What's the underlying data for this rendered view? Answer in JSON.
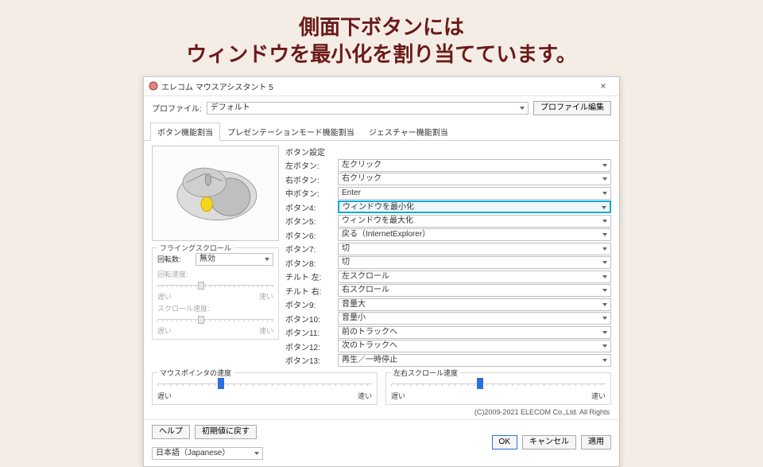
{
  "headline_line1": "側面下ボタンには",
  "headline_line2": "ウィンドウを最小化を割り当てています。",
  "window": {
    "title": "エレコム マウスアシスタント 5",
    "profile_label": "プロファイル:",
    "profile_value": "デフォルト",
    "profile_edit_btn": "プロファイル編集",
    "tabs": {
      "t1": "ボタン機能割当",
      "t2": "プレゼンテーションモード機能割当",
      "t3": "ジェスチャー機能割当"
    },
    "button_settings_label": "ボタン設定",
    "rows": [
      {
        "label": "左ボタン:",
        "value": "左クリック"
      },
      {
        "label": "右ボタン:",
        "value": "右クリック"
      },
      {
        "label": "中ボタン:",
        "value": "Enter"
      },
      {
        "label": "ボタン4:",
        "value": "ウィンドウを最小化",
        "highlight": true
      },
      {
        "label": "ボタン5:",
        "value": "ウィンドウを最大化"
      },
      {
        "label": "ボタン6:",
        "value": "戻る（InternetExplorer）"
      },
      {
        "label": "ボタン7:",
        "value": "切"
      },
      {
        "label": "ボタン8:",
        "value": "切"
      },
      {
        "label": "チルト 左:",
        "value": "左スクロール"
      },
      {
        "label": "チルト 右:",
        "value": "右スクロール"
      },
      {
        "label": "ボタン9:",
        "value": "音量大"
      },
      {
        "label": "ボタン10:",
        "value": "音量小"
      },
      {
        "label": "ボタン11:",
        "value": "前のトラックへ"
      },
      {
        "label": "ボタン12:",
        "value": "次のトラックへ"
      },
      {
        "label": "ボタン13:",
        "value": "再生／一時停止"
      }
    ],
    "flying_scroll": {
      "title": "フライングスクロール",
      "rotation_label": "回転数:",
      "rotation_value": "無効",
      "rot_speed_label": "回転速度:",
      "scroll_speed_label": "スクロール速度:",
      "slow": "遅い",
      "fast": "速い"
    },
    "pointer_speed_label": "マウスポインタの速度",
    "lr_scroll_speed_label": "左右スクロール速度",
    "slow": "遅い",
    "fast": "速い",
    "copyright": "(C)2009-2021 ELECOM Co.,Ltd. All Rights",
    "help_btn": "ヘルプ",
    "reset_btn": "初期値に戻す",
    "lang_value": "日本語（Japanese）",
    "ok_btn": "OK",
    "cancel_btn": "キャンセル",
    "apply_btn": "適用"
  },
  "style": {
    "highlight_color": "#13a8d6",
    "accent_color": "#2e6fe0",
    "headline_color": "#6b1a1a",
    "page_bg": "#f4ede6",
    "pointer_thumb_pct": 28,
    "lr_thumb_pct": 40,
    "fs_thumb1_pct": 35,
    "fs_thumb2_pct": 35
  }
}
